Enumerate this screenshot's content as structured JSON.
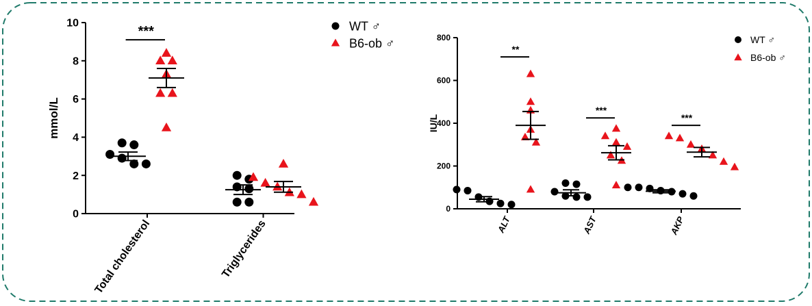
{
  "colors": {
    "wt": "#000000",
    "ob": "#e8141c",
    "border": "#1f7a6a"
  },
  "chart_data": [
    {
      "type": "scatter",
      "ylabel": "mmol/L",
      "ylim": [
        0,
        10
      ],
      "yticks": [
        0,
        2,
        4,
        6,
        8,
        10
      ],
      "categories": [
        "Total cholesterol",
        "Triglycerides"
      ],
      "legend": [
        {
          "label": "WT ♂",
          "marker": "circle"
        },
        {
          "label": "B6-ob ♂",
          "marker": "triangle"
        }
      ],
      "series": [
        {
          "name": "WT ♂",
          "marker": "circle",
          "points": [
            [
              3.6,
              3.7,
              3.1,
              2.9,
              2.6,
              2.6
            ],
            [
              2.0,
              1.8,
              1.4,
              1.3,
              0.6,
              0.6
            ]
          ],
          "mean": [
            3.0,
            1.25
          ],
          "sem": [
            0.22,
            0.25
          ]
        },
        {
          "name": "B6-ob ♂",
          "marker": "triangle",
          "points": [
            [
              8.0,
              8.0,
              8.4,
              7.3,
              6.3,
              6.3,
              4.5
            ],
            [
              2.6,
              1.9,
              1.6,
              1.4,
              1.1,
              1.0,
              0.6
            ]
          ],
          "mean": [
            7.1,
            1.4
          ],
          "sem": [
            0.5,
            0.28
          ]
        }
      ],
      "annotations": [
        {
          "category": 0,
          "text": "***",
          "y": 9.1
        }
      ]
    },
    {
      "type": "scatter",
      "ylabel": "IU/L",
      "ylim": [
        0,
        800
      ],
      "yticks": [
        0,
        200,
        400,
        600,
        800
      ],
      "categories": [
        "ALT",
        "AST",
        "AKP"
      ],
      "legend": [
        {
          "label": "WT ♂",
          "marker": "circle"
        },
        {
          "label": "B6-ob ♂",
          "marker": "triangle"
        }
      ],
      "series": [
        {
          "name": "WT ♂",
          "marker": "circle",
          "points": [
            [
              90,
              85,
              55,
              35,
              25,
              20
            ],
            [
              120,
              115,
              80,
              60,
              55,
              55
            ],
            [
              100,
              100,
              95,
              85,
              80,
              70,
              60
            ]
          ],
          "mean": [
            45,
            75,
            82
          ],
          "sem": [
            12,
            14,
            7
          ]
        },
        {
          "name": "B6-ob ♂",
          "marker": "triangle",
          "points": [
            [
              630,
              500,
              460,
              370,
              335,
              310,
              90
            ],
            [
              375,
              340,
              310,
              290,
              250,
              225,
              110
            ],
            [
              340,
              330,
              300,
              280,
              250,
              220,
              195
            ]
          ],
          "mean": [
            390,
            262,
            265
          ],
          "sem": [
            65,
            33,
            22
          ]
        }
      ],
      "annotations": [
        {
          "category": 0,
          "text": "**",
          "y": 710
        },
        {
          "category": 1,
          "text": "***",
          "y": 425
        },
        {
          "category": 2,
          "text": "***",
          "y": 390
        }
      ]
    }
  ]
}
